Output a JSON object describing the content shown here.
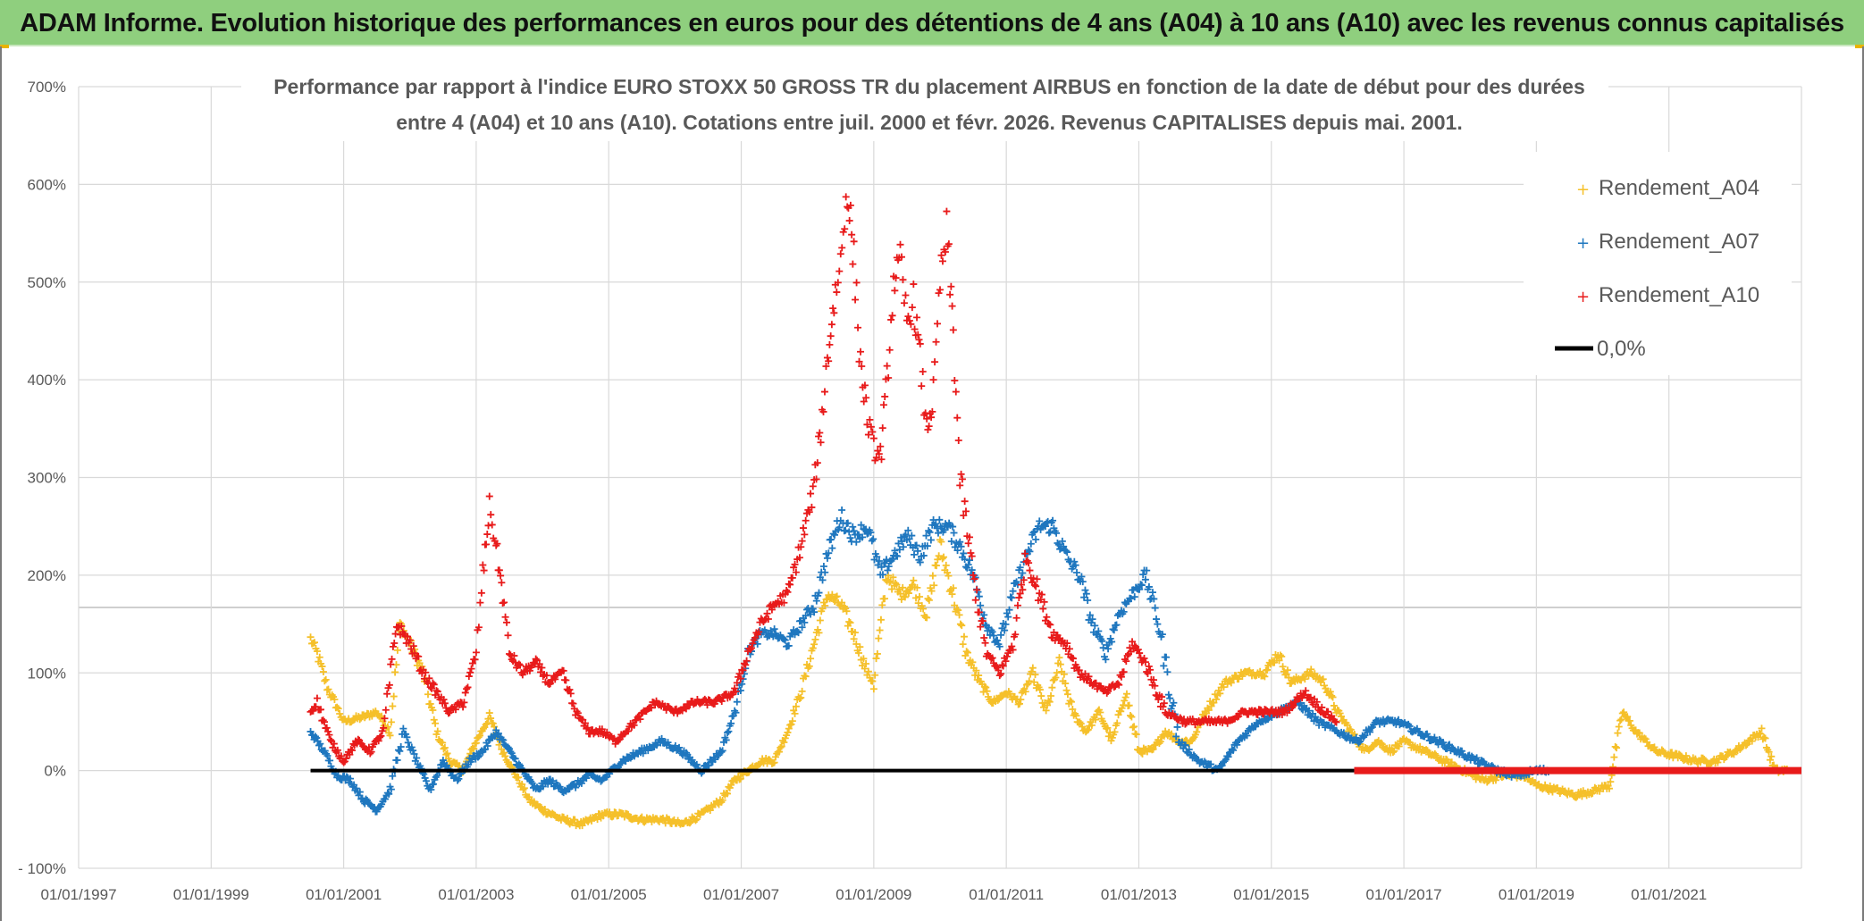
{
  "header": {
    "title": "ADAM Informe. Evolution historique des performances en euros pour des détentions de 4 ans (A04) à 10 ans (A10) avec les revenus connus capitalisés"
  },
  "chart_data": {
    "type": "scatter",
    "title_line1": "Performance par rapport à l'indice EURO STOXX 50 GROSS TR  du placement AIRBUS en fonction de la date de début pour des durées",
    "title_line2": "entre 4 (A04) et 10 ans (A10). Cotations entre juil. 2000 et févr. 2026. Revenus CAPITALISES depuis mai. 2001.",
    "xlabel": "",
    "ylabel": "",
    "x_ticks": [
      "01/01/1997",
      "01/01/1999",
      "01/01/2001",
      "01/01/2003",
      "01/01/2005",
      "01/01/2007",
      "01/01/2009",
      "01/01/2011",
      "01/01/2013",
      "01/01/2015",
      "01/01/2017",
      "01/01/2019",
      "01/01/2021"
    ],
    "y_ticks": [
      "- 100%",
      "0%",
      "100%",
      "200%",
      "300%",
      "400%",
      "500%",
      "600%",
      "700%"
    ],
    "xlim": [
      1997.0,
      2023.0
    ],
    "ylim": [
      -100,
      700
    ],
    "legend_position": "top-right",
    "series": [
      {
        "name": "Rendement_A04",
        "color": "#f5c02a",
        "x": [
          2000.5,
          2000.6,
          2000.75,
          2000.9,
          2001.0,
          2001.3,
          2001.5,
          2001.7,
          2001.85,
          2002.0,
          2002.2,
          2002.4,
          2002.6,
          2002.8,
          2003.0,
          2003.2,
          2003.4,
          2003.6,
          2003.8,
          2004.0,
          2004.3,
          2004.6,
          2004.9,
          2005.2,
          2005.5,
          2005.8,
          2006.1,
          2006.4,
          2006.7,
          2006.9,
          2007.1,
          2007.3,
          2007.5,
          2007.7,
          2007.9,
          2008.1,
          2008.3,
          2008.5,
          2008.7,
          2008.9,
          2009.0,
          2009.2,
          2009.4,
          2009.6,
          2009.8,
          2010.0,
          2010.2,
          2010.4,
          2010.6,
          2010.8,
          2011.0,
          2011.2,
          2011.4,
          2011.6,
          2011.8,
          2012.0,
          2012.2,
          2012.4,
          2012.6,
          2012.8,
          2013.0,
          2013.2,
          2013.4,
          2013.6,
          2013.8,
          2014.0,
          2014.3,
          2014.6,
          2014.9,
          2015.1,
          2015.3,
          2015.6,
          2015.8,
          2016.0,
          2016.2,
          2016.4,
          2016.6,
          2016.8,
          2017.0,
          2017.3,
          2017.6,
          2017.9,
          2018.2,
          2018.5,
          2018.8,
          2019.0,
          2019.3,
          2019.6,
          2019.9,
          2020.1,
          2020.3,
          2020.5,
          2020.8,
          2021.1,
          2021.4,
          2021.7,
          2022.0,
          2022.2,
          2022.4,
          2022.6,
          2022.8
        ],
        "values": [
          135,
          120,
          85,
          65,
          50,
          55,
          60,
          40,
          150,
          130,
          100,
          40,
          10,
          0,
          30,
          55,
          20,
          -5,
          -30,
          -40,
          -50,
          -55,
          -45,
          -45,
          -50,
          -50,
          -55,
          -45,
          -30,
          -10,
          0,
          10,
          10,
          40,
          80,
          130,
          180,
          170,
          140,
          100,
          90,
          200,
          180,
          190,
          160,
          230,
          180,
          120,
          90,
          70,
          80,
          70,
          100,
          60,
          110,
          60,
          40,
          60,
          30,
          80,
          20,
          20,
          40,
          30,
          30,
          60,
          90,
          100,
          100,
          120,
          90,
          100,
          90,
          60,
          40,
          20,
          30,
          20,
          30,
          20,
          10,
          0,
          -10,
          -5,
          -5,
          -15,
          -20,
          -25,
          -20,
          -15,
          60,
          40,
          20,
          15,
          10,
          10,
          20,
          30,
          40,
          0,
          0
        ]
      },
      {
        "name": "Rendement_A07",
        "color": "#1f77bf",
        "x": [
          2000.5,
          2000.7,
          2000.9,
          2001.1,
          2001.3,
          2001.5,
          2001.7,
          2001.9,
          2002.1,
          2002.3,
          2002.5,
          2002.7,
          2002.9,
          2003.1,
          2003.3,
          2003.5,
          2003.7,
          2003.9,
          2004.1,
          2004.3,
          2004.5,
          2004.7,
          2004.9,
          2005.2,
          2005.5,
          2005.8,
          2006.1,
          2006.4,
          2006.7,
          2006.9,
          2007.1,
          2007.3,
          2007.5,
          2007.7,
          2007.9,
          2008.1,
          2008.3,
          2008.5,
          2008.7,
          2008.9,
          2009.1,
          2009.3,
          2009.5,
          2009.7,
          2009.9,
          2010.1,
          2010.3,
          2010.5,
          2010.7,
          2010.9,
          2011.1,
          2011.3,
          2011.5,
          2011.7,
          2011.9,
          2012.1,
          2012.3,
          2012.5,
          2012.7,
          2012.9,
          2013.1,
          2013.3,
          2013.6,
          2013.9,
          2014.2,
          2014.5,
          2014.8,
          2015.1,
          2015.4,
          2015.7,
          2016.0,
          2016.3,
          2016.6,
          2016.9,
          2017.2,
          2017.5,
          2017.8,
          2018.1,
          2018.4,
          2018.7,
          2019.0,
          2019.2
        ],
        "values": [
          40,
          20,
          -5,
          -10,
          -30,
          -40,
          -20,
          40,
          10,
          -20,
          10,
          -10,
          10,
          20,
          40,
          20,
          0,
          -20,
          -10,
          -20,
          -15,
          -5,
          -10,
          10,
          20,
          30,
          20,
          0,
          20,
          60,
          120,
          140,
          140,
          130,
          150,
          170,
          220,
          260,
          240,
          250,
          200,
          220,
          240,
          220,
          250,
          250,
          230,
          200,
          150,
          130,
          180,
          220,
          250,
          250,
          220,
          200,
          150,
          120,
          160,
          180,
          200,
          150,
          30,
          10,
          0,
          30,
          50,
          60,
          70,
          50,
          40,
          30,
          50,
          50,
          40,
          30,
          20,
          10,
          0,
          -5,
          0,
          0
        ]
      },
      {
        "name": "Rendement_A10",
        "color": "#e81b1b",
        "x": [
          2000.5,
          2000.6,
          2000.8,
          2001.0,
          2001.2,
          2001.4,
          2001.6,
          2001.8,
          2002.0,
          2002.2,
          2002.4,
          2002.6,
          2002.8,
          2003.0,
          2003.1,
          2003.2,
          2003.3,
          2003.4,
          2003.5,
          2003.7,
          2003.9,
          2004.1,
          2004.3,
          2004.5,
          2004.7,
          2004.9,
          2005.1,
          2005.4,
          2005.7,
          2006.0,
          2006.3,
          2006.6,
          2006.9,
          2007.1,
          2007.3,
          2007.5,
          2007.7,
          2007.9,
          2008.1,
          2008.2,
          2008.3,
          2008.4,
          2008.5,
          2008.6,
          2008.7,
          2008.8,
          2008.9,
          2009.0,
          2009.1,
          2009.2,
          2009.3,
          2009.4,
          2009.5,
          2009.6,
          2009.7,
          2009.8,
          2009.9,
          2010.0,
          2010.1,
          2010.2,
          2010.3,
          2010.5,
          2010.7,
          2010.9,
          2011.1,
          2011.3,
          2011.5,
          2011.7,
          2011.9,
          2012.1,
          2012.3,
          2012.5,
          2012.7,
          2012.9,
          2013.1,
          2013.4,
          2013.7,
          2014.0,
          2014.3,
          2014.6,
          2014.9,
          2015.2,
          2015.5,
          2015.8,
          2016.0
        ],
        "values": [
          60,
          70,
          30,
          10,
          30,
          20,
          40,
          150,
          130,
          100,
          80,
          60,
          70,
          120,
          200,
          270,
          230,
          180,
          120,
          100,
          110,
          90,
          100,
          60,
          40,
          40,
          30,
          50,
          70,
          60,
          70,
          70,
          80,
          120,
          150,
          170,
          180,
          230,
          290,
          350,
          420,
          480,
          520,
          600,
          520,
          420,
          360,
          330,
          320,
          400,
          500,
          520,
          460,
          480,
          420,
          350,
          380,
          500,
          550,
          450,
          300,
          200,
          120,
          100,
          130,
          220,
          180,
          140,
          130,
          100,
          90,
          80,
          90,
          130,
          110,
          60,
          50,
          50,
          50,
          60,
          60,
          60,
          80,
          60,
          50
        ]
      }
    ],
    "zero_line": {
      "name": "0,0%",
      "value": 0,
      "color": "#000000",
      "x_start": 2000.5,
      "x_end": 2016.25
    },
    "red_flat_segment": {
      "x_start": 2016.25,
      "x_end": 2023.0,
      "value": 0
    }
  }
}
